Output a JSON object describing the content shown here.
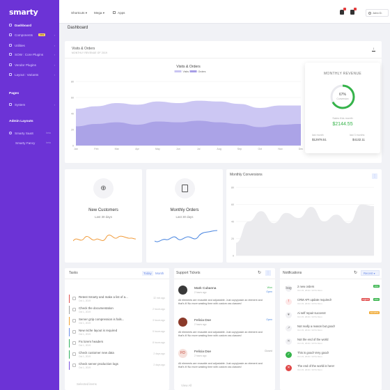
{
  "brand": "smarty",
  "sidebar": {
    "items": [
      {
        "label": "Dashboard",
        "active": true
      },
      {
        "label": "Components",
        "badge": "new"
      },
      {
        "label": "Utilities"
      },
      {
        "label": "SOW : Core Plugins"
      },
      {
        "label": "Vendor Plugins"
      },
      {
        "label": "Layout : Variants"
      }
    ],
    "pages_heading": "Pages",
    "pages_items": [
      {
        "label": "System"
      }
    ],
    "admin_heading": "Admin Layouts",
    "admin_items": [
      {
        "label": "Smarty SaaS",
        "hint": "beta"
      },
      {
        "label": "Smarty Fancy",
        "hint": "beta"
      }
    ]
  },
  "topbar": {
    "shortcuts": "Shortcuts",
    "mega": "Mega",
    "apps": "Apps",
    "user": "John D."
  },
  "page_title": "Dashboard",
  "visits": {
    "title": "Visits & Orders",
    "subtitle": "MONTHLY REVENUE OF 2019",
    "chart_title": "Visits & Orders"
  },
  "revenue": {
    "heading": "MONTHLY REVENUE",
    "percent": "67%",
    "percent_label": "Conversion",
    "sales_label": "Sales this month",
    "sales_value": "$2144.55",
    "last_month_label": "last month",
    "last_month_value": "$12978.51",
    "last3_label": "last 3 months",
    "last3_value": "$4132.11",
    "conversion_fraction": 0.67
  },
  "new_customers": {
    "title": "New Customers",
    "sub": "Last 30 days"
  },
  "monthly_orders": {
    "title": "Monthly Orders",
    "sub": "Last 30 days"
  },
  "conversions": {
    "title": "Monthly Conversions"
  },
  "tasks": {
    "title": "Tasks",
    "tab_today": "Today",
    "tab_month": "Month",
    "items": [
      {
        "text": "Retest Smarty and make a list of a...",
        "date": "Oct 1, 2019",
        "ago": "32 min ago",
        "color": "#e05050"
      },
      {
        "text": "Check the documentation",
        "date": "Oct 1, 2019",
        "ago": "2 hours ago",
        "color": "#a0a0a0"
      },
      {
        "text": "Server gzip compression is fails...",
        "date": "Oct 1, 2019",
        "ago": "3 hours ago",
        "color": "#f0a030"
      },
      {
        "text": "New niche layout is required",
        "date": "Oct 1, 2019",
        "ago": "5 hours ago",
        "color": "#6b8ce8"
      },
      {
        "text": "Fix lorem headers",
        "date": "Oct 1, 2019",
        "ago": "8 hours ago",
        "color": "#30b060"
      },
      {
        "text": "Check customer new data",
        "date": "Oct 1, 2019",
        "ago": "2 days ago",
        "color": "#30b060"
      },
      {
        "text": "Check server production logs",
        "date": "Oct 1, 2019",
        "ago": "2 days ago",
        "color": "#7a4fe0"
      }
    ],
    "footer": "Selected items"
  },
  "tickets": {
    "title": "Support Tickets",
    "items": [
      {
        "name": "Mark Cubanna",
        "when": "2 hours ago",
        "status1": "Won",
        "status2": "Open",
        "body": "All elements are reusable and adjustable. Just copy/paste an element and that's it! No more wasting time with custom css classes!",
        "av": "#3a3a3a"
      },
      {
        "name": "Felicia Doe",
        "when": "2 hours ago",
        "status1": "Open",
        "status2": "",
        "body": "All elements are reusable and adjustable. Just copy/paste an element and that's it! No more wasting time with custom css classes!",
        "av": "#8b3a2a"
      },
      {
        "name": "Felicia Doe",
        "when": "2 hours ago",
        "status1": "Closed",
        "status2": "",
        "initials": "FD",
        "body": "All elements are reusable and adjustable. Just copy/paste an element and that's it! No more wasting time with custom css classes!",
        "av": "#f6e1dc"
      }
    ],
    "footer": "View All"
  },
  "notifications": {
    "title": "Notifications",
    "filter": "Recent",
    "items": [
      {
        "text": "2 new orders",
        "date": "Oct 15, 2019 / 10:51 Mom",
        "tag": "new",
        "tag2": "",
        "icon": "bag",
        "ic_bg": "#f1f1f4",
        "ic_fg": "#777"
      },
      {
        "text": "CRM API update required!",
        "date": "Oct 15, 2019 / 10:51 Mom",
        "tag": "urgent",
        "tag2": "new",
        "icon": "!",
        "ic_bg": "#fde8e8",
        "ic_fg": "#e04848"
      },
      {
        "text": "Ai self repair success!",
        "date": "Oct 15, 2019 / 10:51 Mom",
        "tag": "success",
        "tag2": "",
        "icon": "♥",
        "ic_bg": "#f1f1f4",
        "ic_fg": "#888"
      },
      {
        "text": "Not really a reason but good!",
        "date": "Oct 15, 2019 / 10:51 Mom",
        "tag": "",
        "tag2": "",
        "icon": "↗",
        "ic_bg": "#f1f1f4",
        "ic_fg": "#888"
      },
      {
        "text": "Not the end of the world",
        "date": "Oct 15, 2019 / 10:51 Mom",
        "tag": "",
        "tag2": "",
        "icon": "✕",
        "ic_bg": "#f1f1f4",
        "ic_fg": "#888"
      },
      {
        "text": "This is good! Very good!",
        "date": "Oct 15, 2019 / 10:51 Mom",
        "tag": "",
        "tag2": "",
        "icon": "✓",
        "ic_bg": "#35b34a",
        "ic_fg": "#fff"
      },
      {
        "text": "The end of the world is here!",
        "date": "Oct 15, 2019 / 10:51 Mom",
        "tag": "",
        "tag2": "",
        "icon": "✕",
        "ic_bg": "#e04848",
        "ic_fg": "#fff"
      }
    ]
  },
  "chart_data": [
    {
      "type": "area",
      "title": "Visits & Orders",
      "categories": [
        "Jan",
        "Feb",
        "Mar",
        "Apr",
        "May",
        "Jun",
        "Jul",
        "Aug",
        "Sep",
        "Oct",
        "Nov",
        "Dec"
      ],
      "ylim": [
        0,
        80
      ],
      "yticks": [
        0,
        20,
        40,
        60,
        80
      ],
      "series": [
        {
          "name": "Visits",
          "color": "#c9c4f2",
          "values": [
            46,
            49,
            53,
            51,
            55,
            53,
            56,
            55,
            52,
            47,
            50,
            50
          ]
        },
        {
          "name": "Orders",
          "color": "#a79ee6",
          "values": [
            24,
            27,
            29,
            26,
            30,
            29,
            31,
            29,
            27,
            23,
            26,
            27
          ]
        }
      ]
    },
    {
      "type": "line",
      "title": "Monthly Conversions",
      "ylim": [
        0,
        80
      ],
      "yticks": [
        0,
        20,
        40,
        60,
        80
      ],
      "values": [
        15,
        40,
        52,
        38,
        50,
        44,
        57,
        40,
        48,
        38,
        60,
        58
      ]
    }
  ],
  "colors": {
    "primary": "#6c33d6",
    "accent": "#6b8ce8",
    "success": "#35b34a",
    "danger": "#e04848"
  }
}
